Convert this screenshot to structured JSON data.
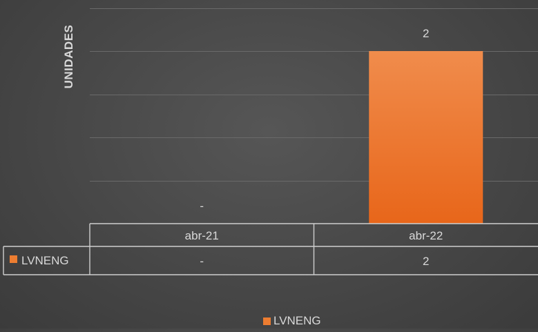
{
  "chart_data": {
    "type": "bar",
    "title": "",
    "xlabel": "",
    "ylabel": "UNIDADES",
    "categories": [
      "abr-21",
      "abr-22"
    ],
    "series": [
      {
        "name": "LVNENG",
        "values": [
          0,
          2
        ],
        "data_labels": [
          "-",
          "2"
        ],
        "color": "#ed7d31"
      }
    ],
    "ylim": [
      0,
      2.5
    ],
    "yticks": [
      0,
      0.5,
      1,
      1.5,
      2,
      2.5
    ],
    "y_axis_labels_shown": false,
    "grid": true,
    "legend": "bottom",
    "data_table": {
      "header": [
        "abr-21",
        "abr-22"
      ],
      "rows": [
        {
          "label": "LVNENG",
          "values": [
            "-",
            "2"
          ]
        }
      ]
    }
  }
}
